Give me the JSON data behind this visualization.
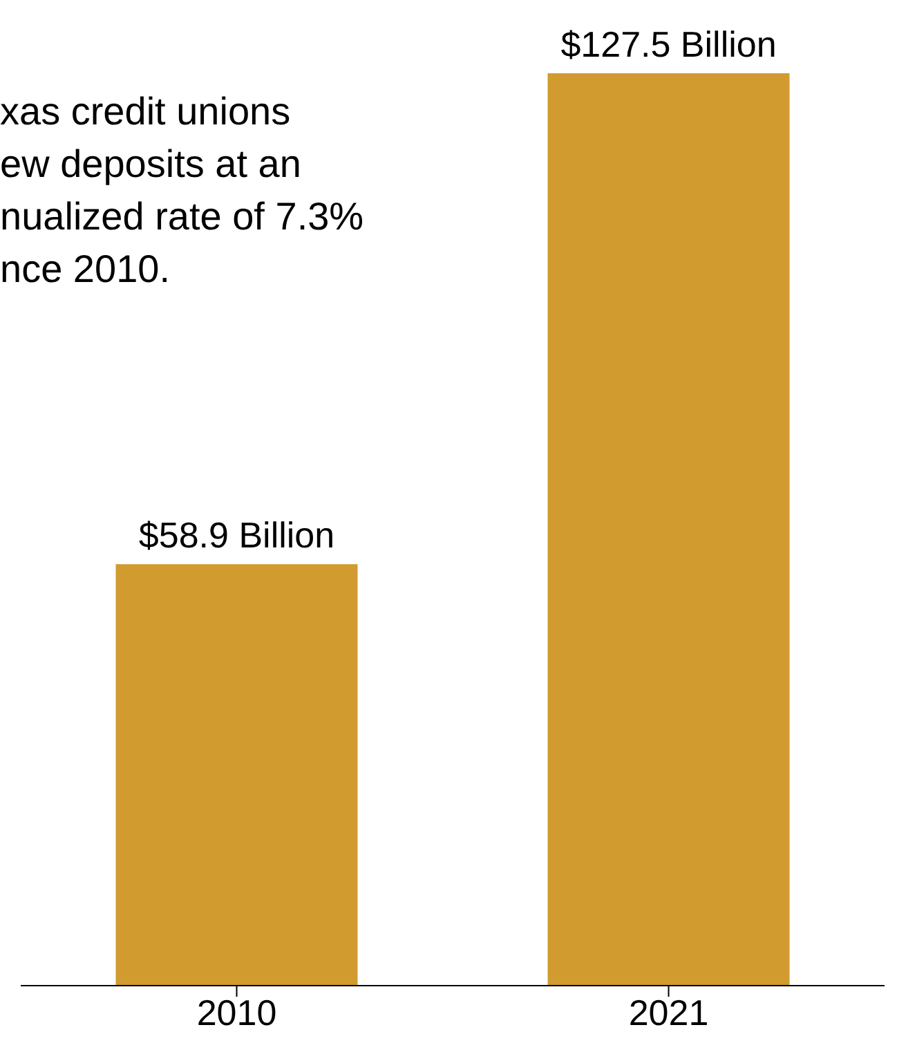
{
  "chart_data": {
    "type": "bar",
    "categories": [
      "2010",
      "2021"
    ],
    "values": [
      58.9,
      127.5
    ],
    "color": "#d19b30",
    "value_labels": [
      "$58.9 Billion",
      "$127.5 Billion"
    ],
    "annotations": [
      "xas credit unions\new deposits at an\nnualized rate of 7.3%\nnce 2010."
    ]
  }
}
